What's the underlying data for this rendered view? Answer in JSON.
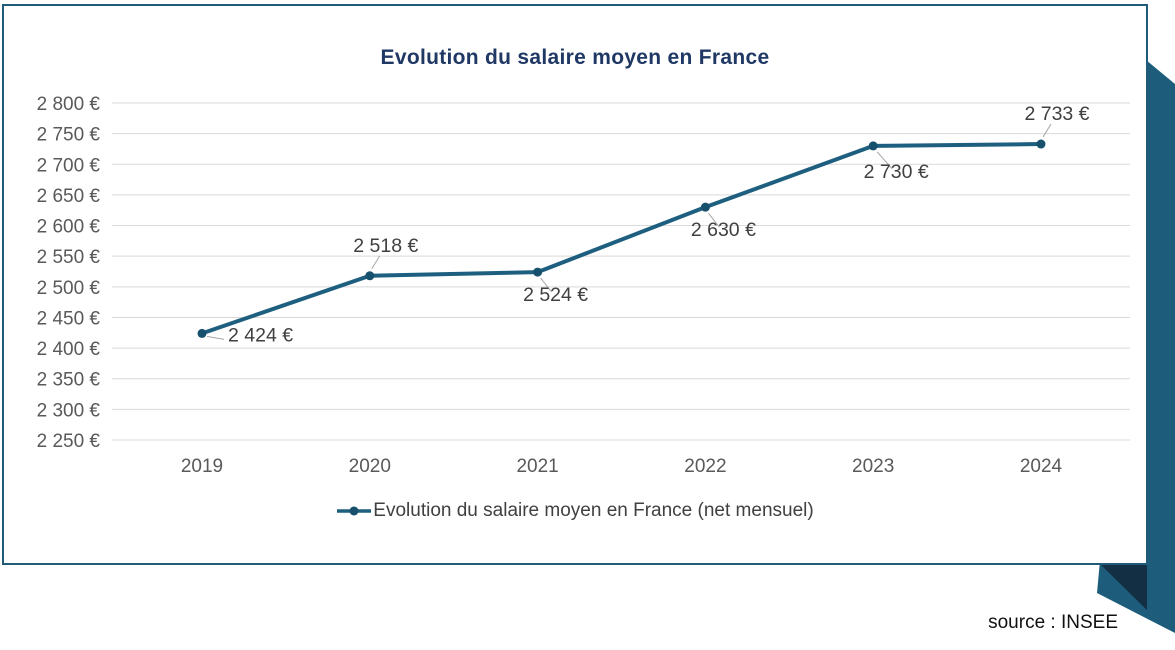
{
  "page": {
    "source_label": "source : INSEE"
  },
  "chart_data": {
    "type": "line",
    "title": "Evolution du salaire moyen en France",
    "categories": [
      "2019",
      "2020",
      "2021",
      "2022",
      "2023",
      "2024"
    ],
    "series": [
      {
        "name": "Evolution du salaire moyen en France (net mensuel)",
        "values": [
          2424,
          2518,
          2524,
          2630,
          2730,
          2733
        ]
      }
    ],
    "value_labels": [
      "2 424 €",
      "2 518 €",
      "2 524 €",
      "2 630 €",
      "2 730 €",
      "2 733 €"
    ],
    "label_placements": [
      "right",
      "above",
      "below",
      "below",
      "below-right",
      "above"
    ],
    "y_axis": {
      "min": 2250,
      "max": 2800,
      "step": 50,
      "tick_labels": [
        "2 800 €",
        "2 750 €",
        "2 700 €",
        "2 650 €",
        "2 600 €",
        "2 550 €",
        "2 500 €",
        "2 450 €",
        "2 400 €",
        "2 350 €",
        "2 300 €",
        "2 250 €"
      ]
    },
    "grid": "horizontal",
    "legend_position": "bottom",
    "colors": {
      "line": "#1E5F80",
      "marker": "#17506C",
      "grid": "#D9D9D9",
      "axis_text": "#595959",
      "label_text": "#404040",
      "title": "#1F3864",
      "leader": "#A6A6A6"
    }
  },
  "decoration": {
    "ribbon_color": "#1D5C7A",
    "fold_color": "#132F43",
    "card_border": "#1E5C7A"
  }
}
